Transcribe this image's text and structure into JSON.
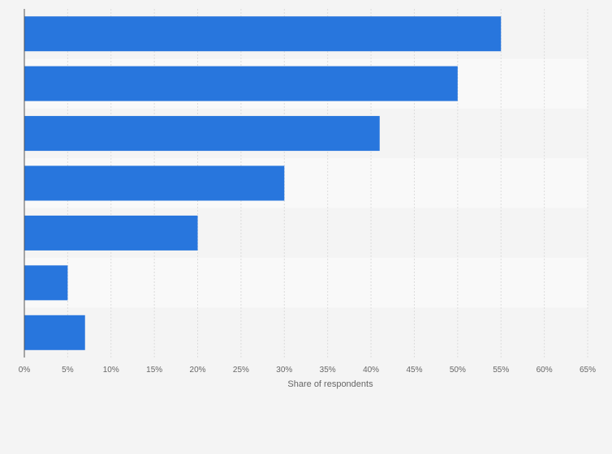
{
  "chart_data": {
    "type": "bar",
    "orientation": "horizontal",
    "categories": [
      "",
      "",
      "",
      "",
      "",
      "",
      ""
    ],
    "values": [
      55,
      50,
      41,
      30,
      20,
      5,
      7
    ],
    "title": "",
    "xlabel": "Share of respondents",
    "ylabel": "",
    "xlim": [
      0,
      65
    ],
    "x_ticks": [
      "0%",
      "5%",
      "10%",
      "15%",
      "20%",
      "25%",
      "30%",
      "35%",
      "40%",
      "45%",
      "50%",
      "55%",
      "60%",
      "65%"
    ],
    "grid": true,
    "legend": "none",
    "colors": {
      "bar": "#2876dd",
      "band_light": "#f9f9f9",
      "band_dark": "#f4f4f4",
      "grid": "#dcdcdc",
      "axis": "#555555"
    }
  }
}
